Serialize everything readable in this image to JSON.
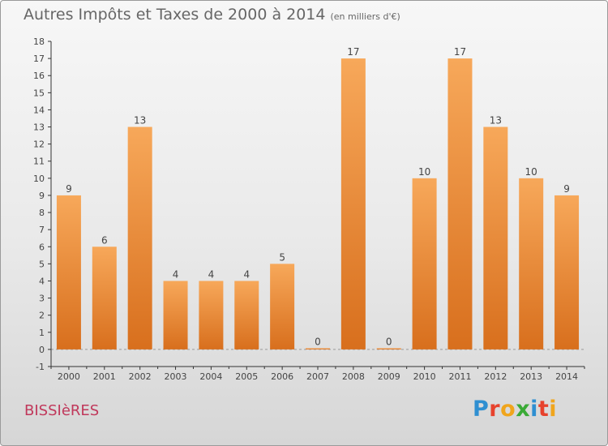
{
  "title": "Autres Impôts et Taxes de 2000 à 2014",
  "subtitle": "(en milliers d'€)",
  "location": "BISSIèRES",
  "logo": {
    "text": "Proxiti",
    "colors": [
      "#2f8fd1",
      "#e7422d",
      "#f0a51c",
      "#3aaa36",
      "#2f8fd1",
      "#e7422d",
      "#f0a51c"
    ]
  },
  "colors": {
    "bar_light": "#f7a85a",
    "bar_dark": "#d86f1d",
    "axis": "#333333",
    "grid": "#9a9a9a",
    "text": "#444444"
  },
  "chart_data": {
    "type": "bar",
    "title": "Autres Impôts et Taxes de 2000 à 2014",
    "subtitle": "(en milliers d'€)",
    "categories": [
      "2000",
      "2001",
      "2002",
      "2003",
      "2004",
      "2005",
      "2006",
      "2007",
      "2008",
      "2009",
      "2010",
      "2011",
      "2012",
      "2013",
      "2014"
    ],
    "values": [
      9,
      6,
      13,
      4,
      4,
      4,
      5,
      0,
      17,
      0,
      10,
      17,
      13,
      10,
      9
    ],
    "ylim": [
      -1,
      18
    ],
    "yticks": [
      -1,
      0,
      1,
      2,
      3,
      4,
      5,
      6,
      7,
      8,
      9,
      10,
      11,
      12,
      13,
      14,
      15,
      16,
      17,
      18
    ],
    "grid": false,
    "data_labels": true
  }
}
